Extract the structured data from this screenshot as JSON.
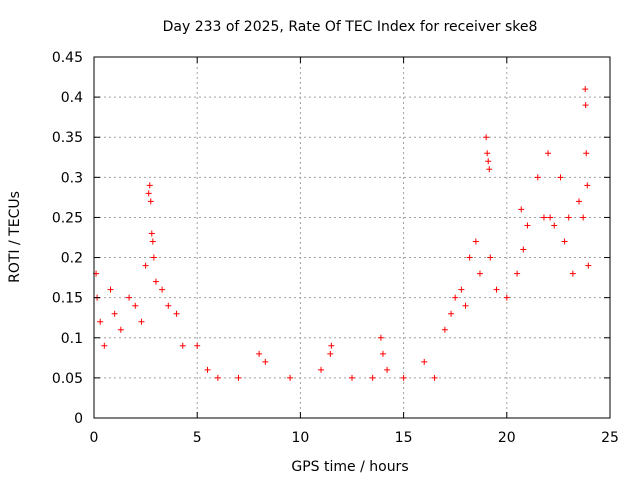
{
  "chart_data": {
    "type": "scatter",
    "title": "Day 233 of 2025, Rate Of TEC Index for receiver ske8",
    "xlabel": "GPS time / hours",
    "ylabel": "ROTI / TECUs",
    "xlim": [
      0,
      25
    ],
    "ylim": [
      0,
      0.45
    ],
    "xticks": [
      0,
      5,
      10,
      15,
      20,
      25
    ],
    "yticks": [
      0,
      0.05,
      0.1,
      0.15,
      0.2,
      0.25,
      0.3,
      0.35,
      0.4,
      0.45
    ],
    "grid": true,
    "marker": "+",
    "color": "#ff0000",
    "series": [
      {
        "points": [
          [
            0.1,
            0.18
          ],
          [
            0.15,
            0.15
          ],
          [
            0.3,
            0.12
          ],
          [
            0.5,
            0.09
          ],
          [
            0.8,
            0.16
          ],
          [
            1.0,
            0.13
          ],
          [
            1.3,
            0.11
          ],
          [
            1.7,
            0.15
          ],
          [
            2.0,
            0.14
          ],
          [
            2.3,
            0.12
          ],
          [
            2.5,
            0.19
          ],
          [
            2.65,
            0.28
          ],
          [
            2.7,
            0.29
          ],
          [
            2.75,
            0.27
          ],
          [
            2.8,
            0.23
          ],
          [
            2.85,
            0.22
          ],
          [
            2.9,
            0.2
          ],
          [
            3.0,
            0.17
          ],
          [
            3.3,
            0.16
          ],
          [
            3.6,
            0.14
          ],
          [
            4.0,
            0.13
          ],
          [
            4.3,
            0.09
          ],
          [
            5.0,
            0.09
          ],
          [
            5.5,
            0.06
          ],
          [
            6.0,
            0.05
          ],
          [
            7.0,
            0.05
          ],
          [
            8.0,
            0.08
          ],
          [
            8.3,
            0.07
          ],
          [
            9.5,
            0.05
          ],
          [
            11.0,
            0.06
          ],
          [
            11.5,
            0.09
          ],
          [
            11.45,
            0.08
          ],
          [
            12.5,
            0.05
          ],
          [
            13.5,
            0.05
          ],
          [
            13.9,
            0.1
          ],
          [
            14.0,
            0.08
          ],
          [
            14.2,
            0.06
          ],
          [
            15.0,
            0.05
          ],
          [
            16.0,
            0.07
          ],
          [
            16.5,
            0.05
          ],
          [
            17.0,
            0.11
          ],
          [
            17.3,
            0.13
          ],
          [
            17.5,
            0.15
          ],
          [
            17.8,
            0.16
          ],
          [
            18.0,
            0.14
          ],
          [
            18.2,
            0.2
          ],
          [
            18.5,
            0.22
          ],
          [
            18.7,
            0.18
          ],
          [
            19.0,
            0.35
          ],
          [
            19.05,
            0.33
          ],
          [
            19.1,
            0.32
          ],
          [
            19.15,
            0.31
          ],
          [
            19.2,
            0.2
          ],
          [
            19.5,
            0.16
          ],
          [
            20.0,
            0.15
          ],
          [
            20.5,
            0.18
          ],
          [
            20.7,
            0.26
          ],
          [
            20.8,
            0.21
          ],
          [
            21.0,
            0.24
          ],
          [
            21.5,
            0.3
          ],
          [
            21.8,
            0.25
          ],
          [
            22.0,
            0.33
          ],
          [
            22.1,
            0.25
          ],
          [
            22.3,
            0.24
          ],
          [
            22.6,
            0.3
          ],
          [
            22.8,
            0.22
          ],
          [
            23.0,
            0.25
          ],
          [
            23.2,
            0.18
          ],
          [
            23.5,
            0.27
          ],
          [
            23.7,
            0.25
          ],
          [
            23.8,
            0.41
          ],
          [
            23.82,
            0.39
          ],
          [
            23.85,
            0.33
          ],
          [
            23.9,
            0.29
          ],
          [
            23.95,
            0.19
          ]
        ]
      }
    ]
  }
}
